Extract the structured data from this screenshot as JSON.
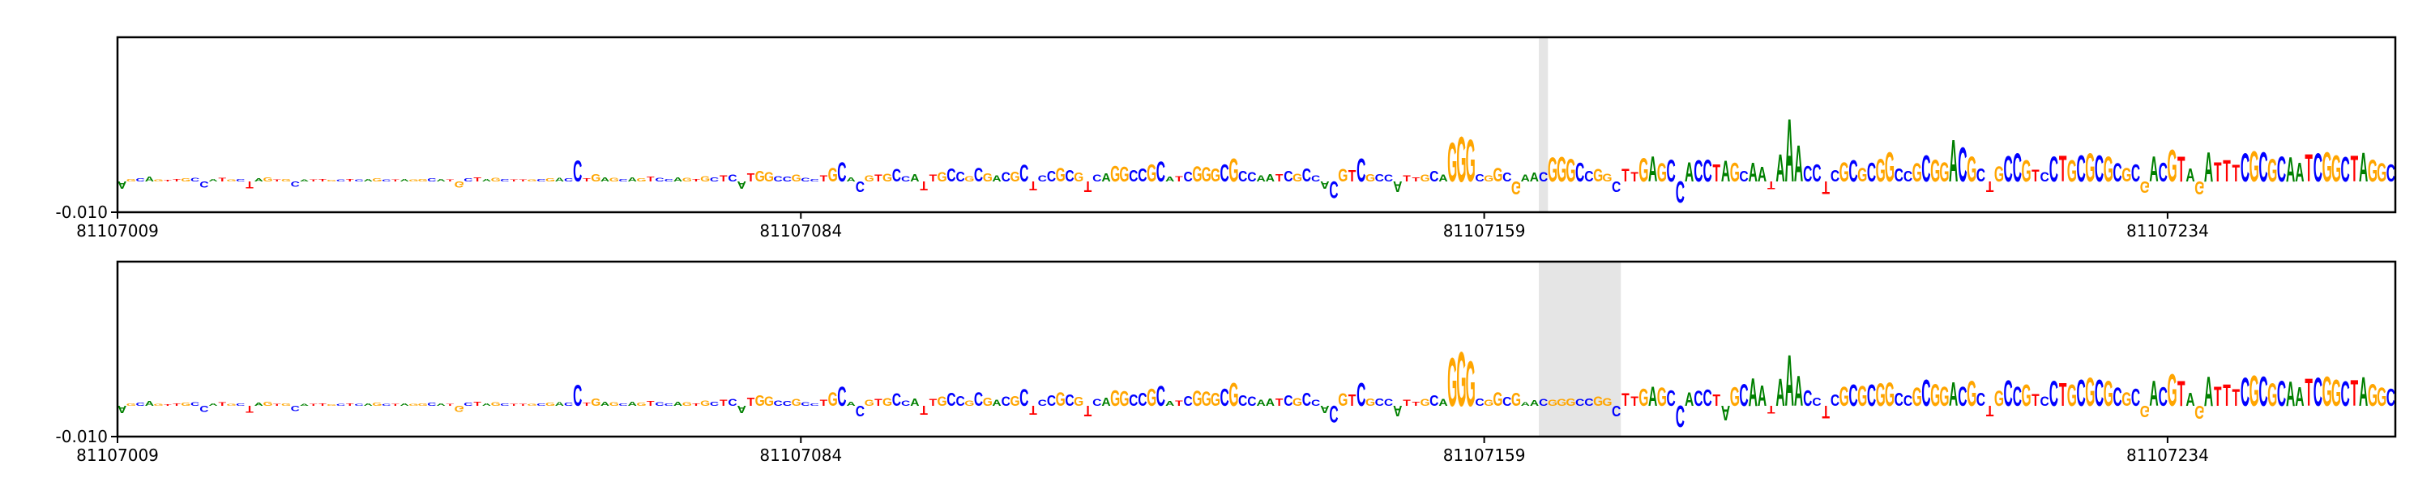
{
  "chart_data": [
    {
      "type": "logo",
      "xlim": [
        81107009,
        81107259
      ],
      "xticks": [
        81107009,
        81107084,
        81107159,
        81107234
      ],
      "ylim": [
        -0.01,
        0.0465
      ],
      "yticks": [
        {
          "value": -0.01,
          "label": "-0.010"
        }
      ],
      "highlight": [
        81107165,
        81107166
      ],
      "colors": {
        "A": "#008000",
        "C": "#0000ff",
        "G": "#ffa500",
        "T": "#ff0000"
      },
      "sequence": "AGCAGTTGCCATGCTAGTGCATTGCTCAGCTAGGCATGCTAGCTTGCGACCTGAGCAGTCCAGTGCTCATGGCCGCCTGCACGTGCCATTGCCGCGACGCTCCGCGTCAGGCCGCATCGGGCGCCAATCGCCACGTCGCCATTGCAGGGCGGCGAACGGGCCGGCTTGAGCCACCTAGCAATAAACCTCGCGCGGCCGCGGACGCTGCCGTCCTGCGCGCGCGACGTAGATTTCGCGCAATCGGCTAGGC",
      "values": [
        -0.0025,
        0.0008,
        0.001,
        0.0015,
        0.0006,
        0.0005,
        0.0008,
        0.001,
        0.0012,
        -0.002,
        0.0008,
        0.0012,
        0.0006,
        0.0009,
        -0.0022,
        0.0011,
        0.0013,
        0.0007,
        0.0009,
        -0.0018,
        0.0007,
        0.0006,
        0.0008,
        0.0005,
        0.0006,
        0.0008,
        0.0006,
        0.0009,
        0.001,
        0.0007,
        0.0006,
        0.0008,
        0.0007,
        0.0009,
        0.001,
        0.0008,
        0.0007,
        -0.002,
        0.0011,
        0.0013,
        0.0009,
        0.0012,
        0.0008,
        0.0007,
        0.0006,
        0.0006,
        0.0009,
        0.001,
        0.0012,
        0.0011,
        0.007,
        0.0011,
        0.0025,
        0.0014,
        0.0012,
        0.0009,
        0.0013,
        0.0011,
        0.0016,
        0.0012,
        0.0008,
        0.0014,
        0.0012,
        0.0009,
        0.0018,
        0.0014,
        0.0021,
        0.0023,
        -0.0025,
        0.0028,
        0.0034,
        0.0032,
        0.0018,
        0.0016,
        0.0022,
        0.0012,
        0.0009,
        0.002,
        0.0045,
        0.0065,
        0.0014,
        -0.0035,
        0.002,
        0.0023,
        0.0026,
        0.0041,
        0.0018,
        0.0025,
        -0.003,
        0.0022,
        0.0031,
        0.0044,
        0.0033,
        0.0018,
        0.0046,
        0.0028,
        0.002,
        0.0032,
        0.0033,
        0.0055,
        -0.003,
        0.002,
        0.0035,
        0.0046,
        0.0038,
        0.0029,
        -0.0035,
        0.0022,
        0.0027,
        0.0052,
        0.0049,
        0.0038,
        0.0043,
        0.0058,
        0.0066,
        0.0016,
        0.0018,
        0.0033,
        0.0051,
        0.0047,
        0.0044,
        0.0058,
        0.0076,
        0.0034,
        0.0031,
        0.0021,
        0.0025,
        0.0024,
        0.0035,
        0.0026,
        0.0044,
        0.0021,
        -0.0025,
        -0.0055,
        0.0041,
        0.0038,
        0.0076,
        0.0025,
        0.0024,
        0.0022,
        -0.0035,
        0.0021,
        0.0014,
        0.0022,
        0.0035,
        0.0022,
        0.013,
        0.015,
        0.014,
        0.0024,
        0.0021,
        0.0045,
        0.003,
        -0.0044,
        0.0022,
        0.0029,
        0.0032,
        0.008,
        0.0082,
        0.0075,
        0.0062,
        0.0034,
        0.0041,
        0.0026,
        -0.0035,
        0.0042,
        0.0032,
        0.0078,
        0.0084,
        0.0061,
        0.0073,
        -0.0072,
        0.0065,
        0.0071,
        0.0074,
        0.0058,
        0.0069,
        0.0062,
        0.0034,
        0.0062,
        0.0048,
        -0.0026,
        0.009,
        0.021,
        0.012,
        0.0052,
        0.0058,
        -0.0041,
        0.0038,
        0.0064,
        0.0071,
        0.0046,
        0.0062,
        0.0075,
        0.0098,
        0.0044,
        0.0035,
        0.0061,
        0.0088,
        0.0073,
        0.0064,
        0.0139,
        0.0114,
        0.0084,
        0.0043,
        -0.0035,
        0.0051,
        0.0086,
        0.0094,
        0.0072,
        0.004,
        0.0032,
        0.0083,
        0.0086,
        0.0072,
        0.0088,
        0.0095,
        0.0088,
        0.0084,
        0.0061,
        0.0045,
        0.0057,
        -0.0039,
        0.0083,
        0.0063,
        0.0107,
        0.0084,
        0.0043,
        -0.0044,
        0.0098,
        0.0064,
        0.0072,
        0.0056,
        0.0094,
        0.0102,
        0.0098,
        0.0075,
        0.0084,
        0.0082,
        0.0062,
        0.0091,
        0.0095,
        0.0098,
        0.0088,
        0.0082,
        0.0086,
        0.0096,
        0.0073,
        0.0061,
        0.0058
      ]
    },
    {
      "type": "logo",
      "xlim": [
        81107009,
        81107259
      ],
      "xticks": [
        81107009,
        81107084,
        81107159,
        81107234
      ],
      "ylim": [
        -0.01,
        0.0465
      ],
      "yticks": [
        {
          "value": -0.01,
          "label": "-0.010"
        }
      ],
      "highlight": [
        81107165,
        81107174
      ],
      "colors": {
        "A": "#008000",
        "C": "#0000ff",
        "G": "#ffa500",
        "T": "#ff0000"
      },
      "sequence": "AGCAGTTGCCATGCTAGTGCATTGCTCAGCTAGGCATGCTAGCTTGCGACCTGAGCAGTCCAGTGCTCATGGCCGCCTGCACGTGCCATTGCCGCGACGCTCCGCGTCAGGCCGCATCGGGCGCCAATCGCCACGTCGCCATTGCAGGGCGGCGAACGGGCCGGCTTGAGCCACCTAGCAATAAACCTCGCGCGGCCGCGGACGCTGCCGTCCTGCGCGCGCGACGTAGATTTCGCGCAATCGGCTAGGC",
      "values": [
        -0.0025,
        0.0008,
        0.001,
        0.0015,
        0.0006,
        0.0005,
        0.0008,
        0.001,
        0.0012,
        -0.002,
        0.0008,
        0.0012,
        0.0006,
        0.0009,
        -0.0022,
        0.0011,
        0.0013,
        0.0007,
        0.0009,
        -0.0018,
        0.0007,
        0.0006,
        0.0008,
        0.0005,
        0.0006,
        0.0008,
        0.0006,
        0.0009,
        0.001,
        0.0007,
        0.0006,
        0.0008,
        0.0007,
        0.0009,
        0.001,
        0.0008,
        0.0007,
        -0.002,
        0.0011,
        0.0013,
        0.0009,
        0.0012,
        0.0008,
        0.0007,
        0.0006,
        0.0006,
        0.0009,
        0.001,
        0.0012,
        0.0011,
        0.007,
        0.0011,
        0.0025,
        0.0014,
        0.0012,
        0.0009,
        0.0013,
        0.0011,
        0.0016,
        0.0012,
        0.0008,
        0.0014,
        0.0012,
        0.0009,
        0.0018,
        0.0014,
        0.0021,
        0.0023,
        -0.0025,
        0.0028,
        0.0034,
        0.0032,
        0.0018,
        0.0016,
        0.0022,
        0.0012,
        0.0009,
        0.002,
        0.0045,
        0.0065,
        0.0014,
        -0.0035,
        0.002,
        0.0023,
        0.0026,
        0.0041,
        0.0018,
        0.0025,
        -0.003,
        0.0022,
        0.0031,
        0.0044,
        0.0033,
        0.0018,
        0.0046,
        0.0028,
        0.002,
        0.0032,
        0.0033,
        0.0055,
        -0.003,
        0.002,
        0.0035,
        0.0046,
        0.0038,
        0.0029,
        -0.0035,
        0.0022,
        0.0027,
        0.0052,
        0.0049,
        0.0038,
        0.0043,
        0.0058,
        0.0066,
        0.0016,
        0.0018,
        0.0033,
        0.0051,
        0.0047,
        0.0044,
        0.0058,
        0.0076,
        0.0034,
        0.0031,
        0.0021,
        0.0025,
        0.0024,
        0.0035,
        0.0026,
        0.0044,
        0.0021,
        -0.0025,
        -0.0055,
        0.0041,
        0.0038,
        0.0076,
        0.0025,
        0.0024,
        0.0022,
        -0.0035,
        0.0021,
        0.0014,
        0.0022,
        0.0035,
        0.0022,
        0.016,
        0.018,
        0.015,
        0.0024,
        0.0021,
        0.0045,
        0.003,
        0.0044,
        0.0012,
        0.0019,
        0.0022,
        0.0021,
        0.0023,
        0.0025,
        0.0022,
        0.0024,
        0.0031,
        0.0026,
        -0.0035,
        0.0042,
        0.0032,
        0.0058,
        0.0064,
        0.0061,
        0.0053,
        -0.0072,
        0.0045,
        0.0051,
        0.0054,
        0.0038,
        -0.0049,
        0.0062,
        0.0074,
        0.0092,
        0.0068,
        -0.0026,
        0.009,
        0.017,
        0.01,
        0.0052,
        0.0028,
        -0.0041,
        0.0038,
        0.0064,
        0.0071,
        0.0066,
        0.0072,
        0.0075,
        0.0078,
        0.0044,
        0.0035,
        0.0061,
        0.0088,
        0.0073,
        0.0064,
        0.0079,
        0.0064,
        0.0084,
        0.0043,
        -0.0035,
        0.0051,
        0.0086,
        0.0064,
        0.0072,
        0.004,
        0.0032,
        0.0083,
        0.0076,
        0.0072,
        0.0088,
        0.0095,
        0.0088,
        0.0084,
        0.0061,
        0.0045,
        0.0057,
        -0.0039,
        0.0083,
        0.0063,
        0.0107,
        0.0084,
        0.0043,
        -0.0044,
        0.0098,
        0.0064,
        0.0072,
        0.0056,
        0.0094,
        0.0102,
        0.0098,
        0.0075,
        0.0084,
        0.0082,
        0.0062,
        0.0091,
        0.0095,
        0.0098,
        0.0088,
        0.0082,
        0.0086,
        0.0096,
        0.0073,
        0.0061,
        0.0058
      ]
    }
  ]
}
